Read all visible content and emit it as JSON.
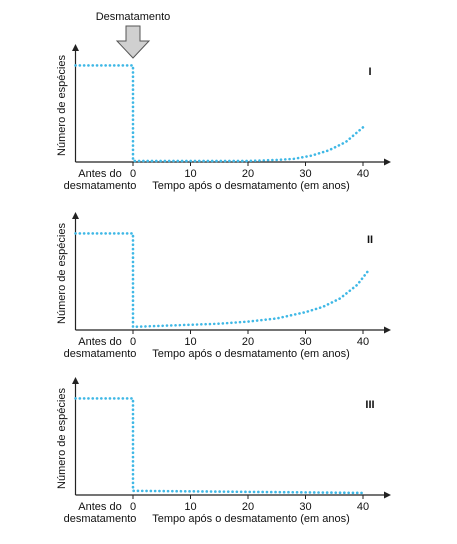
{
  "chart_data": [
    {
      "type": "line",
      "label": "I",
      "y_label": "Número de espécies",
      "x_label": "Tempo após o desmatamento (em anos)",
      "before_label": [
        "Antes do",
        "desmatamento"
      ],
      "annotation": {
        "text": "Desmatamento",
        "x": 0
      },
      "xlim": [
        -10,
        44
      ],
      "xticks": [
        0,
        10,
        20,
        30,
        40
      ],
      "ylim": [
        0,
        100
      ],
      "series": [
        {
          "color": "#3fb8e6",
          "x": [
            -10,
            0,
            0,
            5,
            10,
            15,
            20,
            25,
            28,
            31,
            34,
            37,
            40
          ],
          "values": [
            92,
            92,
            1,
            1,
            1,
            1,
            1,
            2,
            3,
            6,
            11,
            19,
            33
          ]
        }
      ]
    },
    {
      "type": "line",
      "label": "II",
      "y_label": "Número de espécies",
      "x_label": "Tempo após o desmatamento (em anos)",
      "before_label": [
        "Antes do",
        "desmatamento"
      ],
      "xlim": [
        -10,
        44
      ],
      "xticks": [
        0,
        10,
        20,
        30,
        40
      ],
      "ylim": [
        0,
        100
      ],
      "series": [
        {
          "color": "#3fb8e6",
          "x": [
            -10,
            0,
            0,
            5,
            10,
            15,
            20,
            25,
            30,
            33,
            36,
            39,
            41
          ],
          "values": [
            92,
            92,
            3,
            4,
            5,
            6,
            8,
            11,
            17,
            22,
            30,
            43,
            57
          ]
        }
      ]
    },
    {
      "type": "line",
      "label": "III",
      "y_label": "Número de espécies",
      "x_label": "Tempo após o desmatamento (em anos)",
      "before_label": [
        "Antes do",
        "desmatamento"
      ],
      "xlim": [
        -10,
        44
      ],
      "xticks": [
        0,
        10,
        20,
        30,
        40
      ],
      "ylim": [
        0,
        100
      ],
      "series": [
        {
          "color": "#3fb8e6",
          "x": [
            -10,
            0,
            0,
            40
          ],
          "values": [
            92,
            92,
            4,
            2
          ]
        }
      ]
    }
  ]
}
